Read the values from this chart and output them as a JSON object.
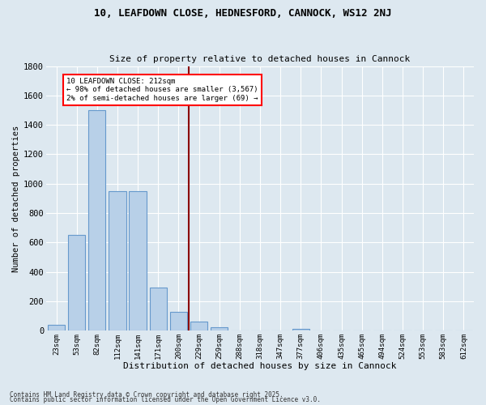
{
  "title1": "10, LEAFDOWN CLOSE, HEDNESFORD, CANNOCK, WS12 2NJ",
  "title2": "Size of property relative to detached houses in Cannock",
  "xlabel": "Distribution of detached houses by size in Cannock",
  "ylabel": "Number of detached properties",
  "categories": [
    "23sqm",
    "53sqm",
    "82sqm",
    "112sqm",
    "141sqm",
    "171sqm",
    "200sqm",
    "229sqm",
    "259sqm",
    "288sqm",
    "318sqm",
    "347sqm",
    "377sqm",
    "406sqm",
    "435sqm",
    "465sqm",
    "494sqm",
    "524sqm",
    "553sqm",
    "583sqm",
    "612sqm"
  ],
  "values": [
    40,
    650,
    1500,
    950,
    950,
    295,
    130,
    65,
    25,
    0,
    0,
    0,
    15,
    0,
    0,
    0,
    0,
    0,
    0,
    0,
    0
  ],
  "bar_color": "#b8d0e8",
  "bar_edge_color": "#6699cc",
  "background_color": "#dde8f0",
  "grid_color": "#ffffff",
  "annotation_text": "10 LEAFDOWN CLOSE: 212sqm\n← 98% of detached houses are smaller (3,567)\n2% of semi-detached houses are larger (69) →",
  "marker_bin_index": 6,
  "ylim": [
    0,
    1800
  ],
  "yticks": [
    0,
    200,
    400,
    600,
    800,
    1000,
    1200,
    1400,
    1600,
    1800
  ],
  "footer1": "Contains HM Land Registry data © Crown copyright and database right 2025.",
  "footer2": "Contains public sector information licensed under the Open Government Licence v3.0."
}
